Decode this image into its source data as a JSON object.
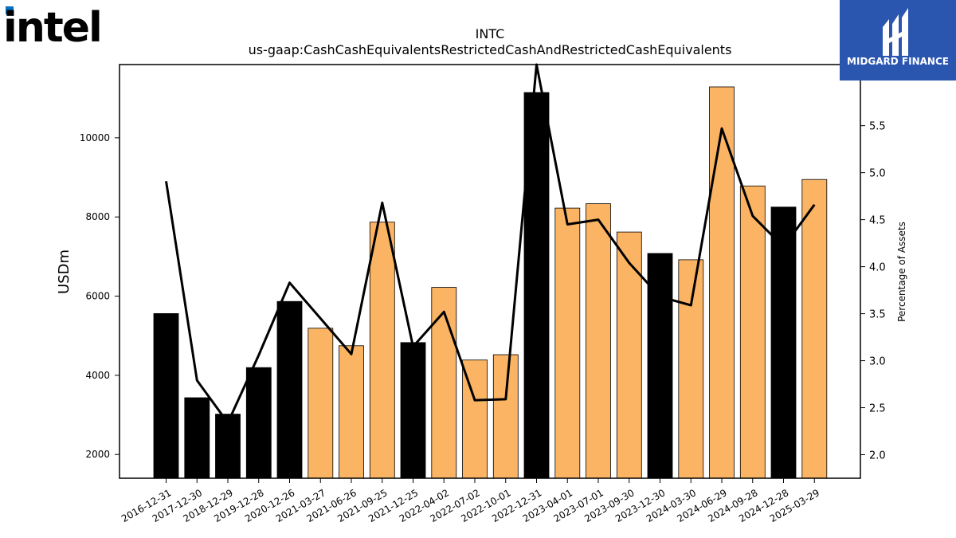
{
  "logos": {
    "left_text": "intel",
    "right_text": "MIDGARD FINANCE",
    "right_bg": "#2a56b0"
  },
  "chart_data": {
    "type": "bar",
    "title": "INTC",
    "subtitle": "us-gaap:CashCashEquivalentsRestrictedCashAndRestrictedCashEquivalents",
    "ylabel": "USDm",
    "y2label": "Percentage of Assets",
    "ylim": [
      1400,
      11850
    ],
    "y2lim": [
      1.75,
      6.15
    ],
    "yticks": [
      2000,
      4000,
      6000,
      8000,
      10000
    ],
    "y2ticks": [
      "2.0",
      "2.5",
      "3.0",
      "3.5",
      "4.0",
      "4.5",
      "5.0",
      "5.5"
    ],
    "categories": [
      "2016-12-31",
      "2017-12-30",
      "2018-12-29",
      "2019-12-28",
      "2020-12-26",
      "2021-03-27",
      "2021-06-26",
      "2021-09-25",
      "2021-12-25",
      "2022-04-02",
      "2022-07-02",
      "2022-10-01",
      "2022-12-31",
      "2023-04-01",
      "2023-07-01",
      "2023-09-30",
      "2023-12-30",
      "2024-03-30",
      "2024-06-29",
      "2024-09-28",
      "2024-12-28",
      "2025-03-29"
    ],
    "series": [
      {
        "values": [
          5560,
          3433,
          3019,
          4194,
          5865,
          5190,
          4747,
          7870,
          4827,
          6220,
          4385,
          4520,
          11144,
          8223,
          8334,
          7620,
          7079,
          6919,
          11287,
          8784,
          8249,
          8947
        ],
        "period_type": [
          "annual",
          "annual",
          "annual",
          "annual",
          "annual",
          "quarter",
          "quarter",
          "quarter",
          "annual",
          "quarter",
          "quarter",
          "quarter",
          "annual",
          "quarter",
          "quarter",
          "quarter",
          "annual",
          "quarter",
          "quarter",
          "quarter",
          "annual",
          "quarter"
        ]
      },
      {
        "axis": "right",
        "type": "line",
        "values": [
          4.91,
          2.79,
          2.34,
          3.06,
          3.83,
          3.45,
          3.07,
          4.68,
          3.15,
          3.52,
          2.58,
          2.59,
          6.15,
          4.45,
          4.5,
          4.04,
          3.68,
          3.59,
          5.47,
          4.54,
          4.21,
          4.66
        ]
      }
    ],
    "colors": {
      "annual": "#000000",
      "quarter": "#fbb463",
      "line": "#000000"
    },
    "grid": false,
    "legend": "none"
  }
}
